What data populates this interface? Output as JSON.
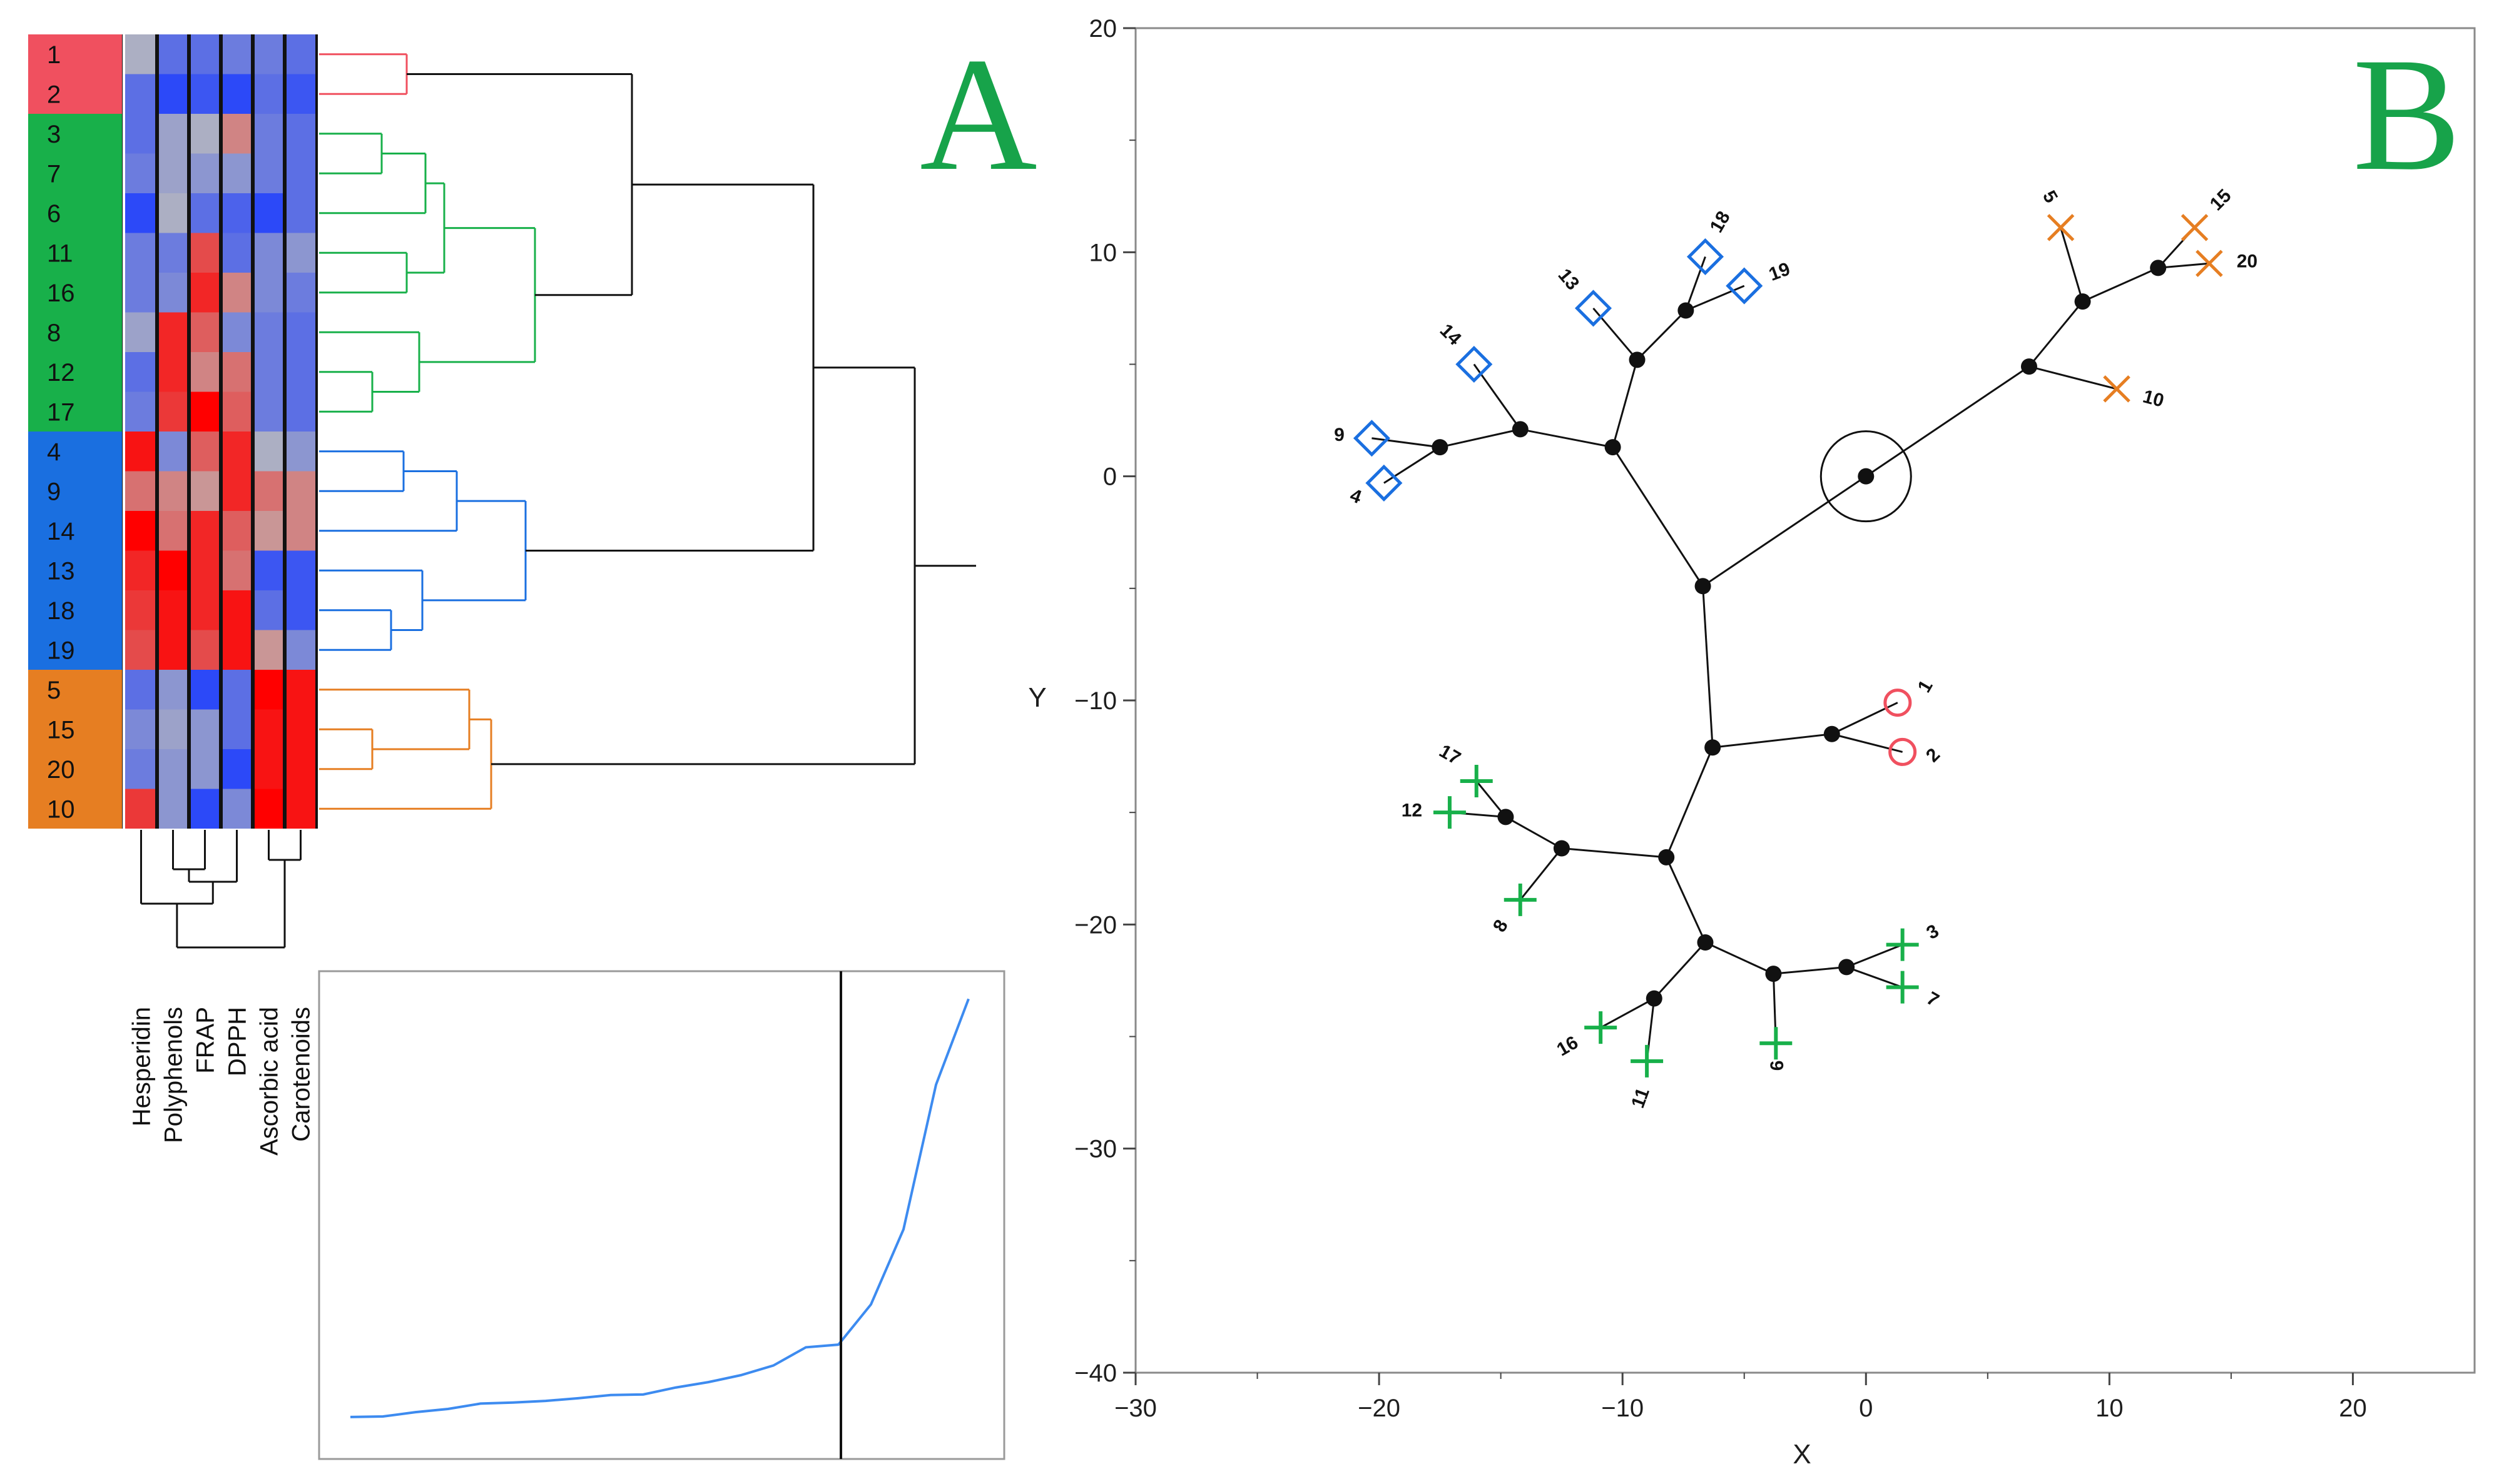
{
  "colors": {
    "cluster_red": "#f0505f",
    "cluster_green": "#18b04a",
    "cluster_blue": "#1a6fe0",
    "cluster_orange": "#e67e22",
    "heat_high": "#ff0000",
    "heat_mid": "#bcbcbc",
    "heat_low": "#1c3cff",
    "panel_letter": "#17a34a",
    "scree_line": "#3d8bf0"
  },
  "panel_a": {
    "letter": "A",
    "row_labels": [
      "1",
      "2",
      "3",
      "7",
      "6",
      "11",
      "16",
      "8",
      "12",
      "17",
      "4",
      "9",
      "14",
      "13",
      "18",
      "19",
      "5",
      "15",
      "20",
      "10"
    ],
    "row_clusters": [
      "red",
      "red",
      "green",
      "green",
      "green",
      "green",
      "green",
      "green",
      "green",
      "green",
      "blue",
      "blue",
      "blue",
      "blue",
      "blue",
      "blue",
      "orange",
      "orange",
      "orange",
      "orange"
    ],
    "column_labels": [
      "Hesperidin",
      "Polyphenols",
      "FRAP",
      "DPPH",
      "Ascorbic acid",
      "Carotenoids"
    ],
    "heatmap_values": [
      [
        -0.1,
        -0.6,
        -0.6,
        -0.5,
        -0.5,
        -0.6
      ],
      [
        -0.6,
        -0.9,
        -0.8,
        -0.9,
        -0.6,
        -0.8
      ],
      [
        -0.6,
        -0.2,
        -0.1,
        0.3,
        -0.5,
        -0.6
      ],
      [
        -0.5,
        -0.2,
        -0.3,
        -0.3,
        -0.5,
        -0.6
      ],
      [
        -0.9,
        -0.1,
        -0.6,
        -0.7,
        -0.9,
        -0.6
      ],
      [
        -0.5,
        -0.5,
        0.6,
        -0.6,
        -0.4,
        -0.3
      ],
      [
        -0.5,
        -0.4,
        0.8,
        0.3,
        -0.4,
        -0.5
      ],
      [
        -0.2,
        0.8,
        0.5,
        -0.4,
        -0.5,
        -0.6
      ],
      [
        -0.6,
        0.8,
        0.3,
        0.4,
        -0.5,
        -0.6
      ],
      [
        -0.5,
        0.7,
        1.0,
        0.5,
        -0.5,
        -0.6
      ],
      [
        0.9,
        -0.4,
        0.5,
        0.8,
        -0.1,
        -0.3
      ],
      [
        0.4,
        0.3,
        0.2,
        0.8,
        0.4,
        0.3
      ],
      [
        1.0,
        0.4,
        0.8,
        0.5,
        0.2,
        0.3
      ],
      [
        0.8,
        1.0,
        0.8,
        0.4,
        -0.8,
        -0.8
      ],
      [
        0.7,
        0.9,
        0.8,
        0.9,
        -0.6,
        -0.8
      ],
      [
        0.6,
        0.9,
        0.6,
        0.9,
        0.2,
        -0.4
      ],
      [
        -0.6,
        -0.3,
        -0.9,
        -0.6,
        1.0,
        0.9
      ],
      [
        -0.4,
        -0.2,
        -0.3,
        -0.6,
        0.9,
        0.9
      ],
      [
        -0.5,
        -0.3,
        -0.3,
        -0.9,
        0.9,
        0.9
      ],
      [
        0.7,
        -0.3,
        -0.9,
        -0.4,
        1.0,
        0.9
      ]
    ],
    "scree_values": [
      1.0,
      1.05,
      1.45,
      1.75,
      2.25,
      2.35,
      2.5,
      2.75,
      3.05,
      3.1,
      3.75,
      4.25,
      4.9,
      5.8,
      7.5,
      7.75,
      11.5,
      18.5,
      32.0,
      40.0
    ],
    "scree_ylim": [
      0,
      42
    ],
    "scree_cut_after": 16
  },
  "panel_b": {
    "letter": "B",
    "xlabel": "X",
    "ylabel": "Y",
    "xlim": [
      -30,
      25
    ],
    "ylim": [
      -40,
      20
    ],
    "x_ticks": [
      -30,
      -20,
      -10,
      0,
      10,
      20
    ],
    "y_ticks": [
      20,
      10,
      0,
      -10,
      -20,
      -30,
      -40
    ],
    "x_tick_labels": [
      "−30",
      "−20",
      "−10",
      "0",
      "10",
      "20"
    ],
    "y_tick_labels": [
      "20",
      "10",
      "0",
      "−10",
      "−20",
      "−30",
      "−40"
    ],
    "root": [
      0,
      0
    ],
    "nodes": [
      [
        0,
        0
      ],
      [
        -6.7,
        -4.9
      ],
      [
        -10.4,
        1.3
      ],
      [
        -14.2,
        2.1
      ],
      [
        -17.5,
        1.3
      ],
      [
        -9.4,
        5.2
      ],
      [
        -7.4,
        7.4
      ],
      [
        6.7,
        4.9
      ],
      [
        8.9,
        7.8
      ],
      [
        12.0,
        9.3
      ],
      [
        -6.3,
        -12.1
      ],
      [
        -1.4,
        -11.5
      ],
      [
        -8.2,
        -17.0
      ],
      [
        -12.5,
        -16.6
      ],
      [
        -14.8,
        -15.2
      ],
      [
        -6.6,
        -20.8
      ],
      [
        -8.7,
        -23.3
      ],
      [
        -3.8,
        -22.2
      ],
      [
        -0.8,
        -21.9
      ]
    ],
    "edges": [
      [
        0,
        1
      ],
      [
        1,
        2
      ],
      [
        2,
        3
      ],
      [
        3,
        4
      ],
      [
        2,
        5
      ],
      [
        5,
        6
      ],
      [
        0,
        7
      ],
      [
        7,
        8
      ],
      [
        8,
        9
      ],
      [
        1,
        10
      ],
      [
        10,
        11
      ],
      [
        10,
        12
      ],
      [
        12,
        13
      ],
      [
        13,
        14
      ],
      [
        12,
        15
      ],
      [
        15,
        16
      ],
      [
        15,
        17
      ],
      [
        17,
        18
      ]
    ],
    "leaves": [
      {
        "label": "1",
        "x": 1.3,
        "y": -10.1,
        "marker": "circle",
        "cluster": "red",
        "parent": 11,
        "rot": -60
      },
      {
        "label": "2",
        "x": 1.5,
        "y": -12.3,
        "marker": "circle",
        "cluster": "red",
        "parent": 11,
        "rot": -45
      },
      {
        "label": "9",
        "x": -20.3,
        "y": 1.7,
        "marker": "diamond",
        "cluster": "blue",
        "parent": 4,
        "rot": 0
      },
      {
        "label": "4",
        "x": -19.8,
        "y": -0.3,
        "marker": "diamond",
        "cluster": "blue",
        "parent": 4,
        "rot": 20
      },
      {
        "label": "14",
        "x": -16.1,
        "y": 5.0,
        "marker": "diamond",
        "cluster": "blue",
        "parent": 3,
        "rot": 45
      },
      {
        "label": "13",
        "x": -11.2,
        "y": 7.5,
        "marker": "diamond",
        "cluster": "blue",
        "parent": 5,
        "rot": 50
      },
      {
        "label": "18",
        "x": -6.6,
        "y": 9.8,
        "marker": "diamond",
        "cluster": "blue",
        "parent": 6,
        "rot": -60
      },
      {
        "label": "19",
        "x": -5.0,
        "y": 8.5,
        "marker": "diamond",
        "cluster": "blue",
        "parent": 6,
        "rot": -20
      },
      {
        "label": "5",
        "x": 8.0,
        "y": 11.1,
        "marker": "x",
        "cluster": "orange",
        "parent": 8,
        "rot": 60
      },
      {
        "label": "15",
        "x": 13.5,
        "y": 11.1,
        "marker": "x",
        "cluster": "orange",
        "parent": 9,
        "rot": -45
      },
      {
        "label": "20",
        "x": 14.1,
        "y": 9.5,
        "marker": "x",
        "cluster": "orange",
        "parent": 9,
        "rot": 0
      },
      {
        "label": "10",
        "x": 10.3,
        "y": 3.9,
        "marker": "x",
        "cluster": "orange",
        "parent": 7,
        "rot": 15
      },
      {
        "label": "17",
        "x": -16.0,
        "y": -13.6,
        "marker": "plus",
        "cluster": "green",
        "parent": 14,
        "rot": 30
      },
      {
        "label": "12",
        "x": -17.1,
        "y": -15.0,
        "marker": "plus",
        "cluster": "green",
        "parent": 14,
        "rot": 0
      },
      {
        "label": "8",
        "x": -14.2,
        "y": -18.9,
        "marker": "plus",
        "cluster": "green",
        "parent": 13,
        "rot": -60
      },
      {
        "label": "16",
        "x": -10.9,
        "y": -24.6,
        "marker": "plus",
        "cluster": "green",
        "parent": 16,
        "rot": -30
      },
      {
        "label": "11",
        "x": -9.0,
        "y": -26.1,
        "marker": "plus",
        "cluster": "green",
        "parent": 16,
        "rot": -70
      },
      {
        "label": "6",
        "x": -3.7,
        "y": -25.3,
        "marker": "plus",
        "cluster": "green",
        "parent": 17,
        "rot": -90
      },
      {
        "label": "3",
        "x": 1.5,
        "y": -20.9,
        "marker": "plus",
        "cluster": "green",
        "parent": 18,
        "rot": -30
      },
      {
        "label": "7",
        "x": 1.5,
        "y": -22.8,
        "marker": "plus",
        "cluster": "green",
        "parent": 18,
        "rot": 30
      }
    ]
  },
  "chart_data": [
    {
      "type": "heatmap",
      "title": "",
      "rows": [
        "1",
        "2",
        "3",
        "7",
        "6",
        "11",
        "16",
        "8",
        "12",
        "17",
        "4",
        "9",
        "14",
        "13",
        "18",
        "19",
        "5",
        "15",
        "20",
        "10"
      ],
      "columns": [
        "Hesperidin",
        "Polyphenols",
        "FRAP",
        "DPPH",
        "Ascorbic acid",
        "Carotenoids"
      ],
      "row_clusters": {
        "red": [
          "1",
          "2"
        ],
        "green": [
          "3",
          "7",
          "6",
          "11",
          "16",
          "8",
          "12",
          "17"
        ],
        "blue": [
          "4",
          "9",
          "14",
          "13",
          "18",
          "19"
        ],
        "orange": [
          "5",
          "15",
          "20",
          "10"
        ]
      },
      "dendrograms": "row and column hierarchical clustering"
    },
    {
      "type": "line",
      "title": "",
      "x": [
        1,
        2,
        3,
        4,
        5,
        6,
        7,
        8,
        9,
        10,
        11,
        12,
        13,
        14,
        15,
        16,
        17,
        18,
        19,
        20
      ],
      "values": [
        1.0,
        1.05,
        1.45,
        1.75,
        2.25,
        2.35,
        2.5,
        2.75,
        3.05,
        3.1,
        3.75,
        4.25,
        4.9,
        5.8,
        7.5,
        7.75,
        11.5,
        18.5,
        32.0,
        40.0
      ],
      "cut_line_x": 16
    },
    {
      "type": "scatter",
      "title": "",
      "xlabel": "X",
      "ylabel": "Y",
      "xlim": [
        -30,
        25
      ],
      "ylim": [
        -40,
        20
      ],
      "series": [
        {
          "name": "",
          "cluster": "red",
          "points": [
            [
              "1",
              1.3,
              -10.1
            ],
            [
              "2",
              1.5,
              -12.3
            ]
          ]
        },
        {
          "name": "",
          "cluster": "blue",
          "points": [
            [
              "9",
              -20.3,
              1.7
            ],
            [
              "4",
              -19.8,
              -0.3
            ],
            [
              "14",
              -16.1,
              5.0
            ],
            [
              "13",
              -11.2,
              7.5
            ],
            [
              "18",
              -6.6,
              9.8
            ],
            [
              "19",
              -5.0,
              8.5
            ]
          ]
        },
        {
          "name": "",
          "cluster": "orange",
          "points": [
            [
              "5",
              8.0,
              11.1
            ],
            [
              "15",
              13.5,
              11.1
            ],
            [
              "20",
              14.1,
              9.5
            ],
            [
              "10",
              10.3,
              3.9
            ]
          ]
        },
        {
          "name": "",
          "cluster": "green",
          "points": [
            [
              "17",
              -16.0,
              -13.6
            ],
            [
              "12",
              -17.1,
              -15.0
            ],
            [
              "8",
              -14.2,
              -18.9
            ],
            [
              "16",
              -10.9,
              -24.6
            ],
            [
              "11",
              -9.0,
              -26.1
            ],
            [
              "6",
              -3.7,
              -25.3
            ],
            [
              "3",
              1.5,
              -20.9
            ],
            [
              "7",
              1.5,
              -22.8
            ]
          ]
        }
      ],
      "grid": false
    }
  ]
}
